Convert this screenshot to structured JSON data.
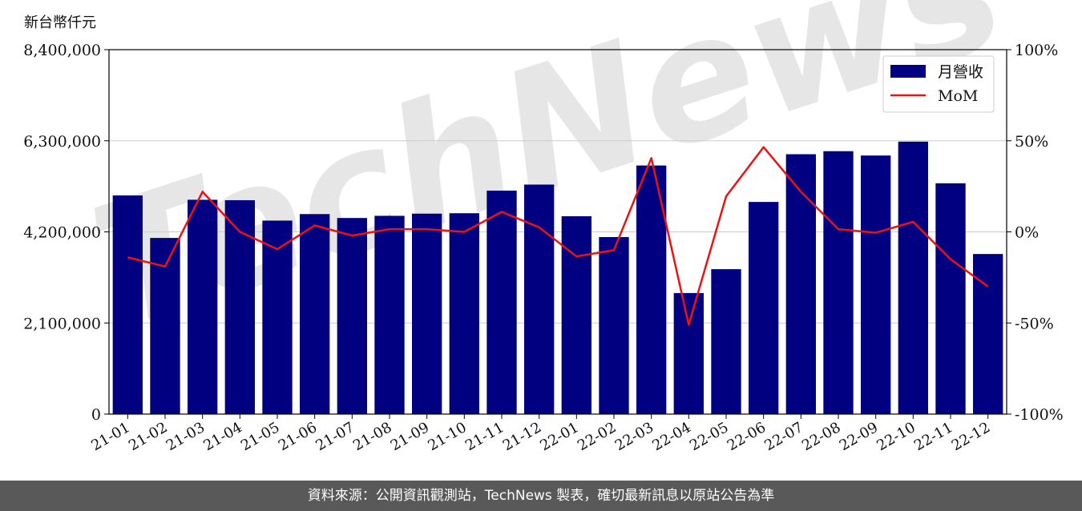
{
  "chart_data": {
    "type": "bar",
    "unit_label": "新台幣仟元",
    "categories": [
      "21-01",
      "21-02",
      "21-03",
      "21-04",
      "21-05",
      "21-06",
      "21-07",
      "21-08",
      "21-09",
      "21-10",
      "21-11",
      "21-12",
      "22-01",
      "22-02",
      "22-03",
      "22-04",
      "22-05",
      "22-06",
      "22-07",
      "22-08",
      "22-09",
      "22-10",
      "22-11",
      "22-12"
    ],
    "series": [
      {
        "name": "月營收",
        "axis": "left",
        "color": "#000080",
        "values": [
          5040000,
          4060000,
          4940000,
          4930000,
          4460000,
          4610000,
          4520000,
          4570000,
          4620000,
          4630000,
          5150000,
          5290000,
          4560000,
          4080000,
          5730000,
          2790000,
          3340000,
          4890000,
          5990000,
          6060000,
          5960000,
          6280000,
          5320000,
          3690000
        ]
      },
      {
        "name": "MoM",
        "axis": "right",
        "color": "#ee1111",
        "values": [
          -14,
          -19,
          22,
          0,
          -9.5,
          3.5,
          -2,
          1.5,
          1.5,
          0,
          11,
          2.5,
          -13.5,
          -10,
          40.5,
          -51,
          19.5,
          46.5,
          22,
          1.5,
          -0.5,
          5.5,
          -15,
          -30
        ]
      }
    ],
    "yticks_left": [
      "0",
      "2,100,000",
      "4,200,000",
      "6,300,000",
      "8,400,000"
    ],
    "yticks_right": [
      "-100%",
      "-50%",
      "0%",
      "50%",
      "100%"
    ],
    "ylim_left": [
      0,
      8400000
    ],
    "ylim_right": [
      -100,
      100
    ],
    "grid": "horizontal",
    "legend_position": "top-right"
  },
  "watermark": "TechNews",
  "footer_text": "資料來源：公開資訊觀測站，TechNews 製表，確切最新訊息以原站公告為準"
}
